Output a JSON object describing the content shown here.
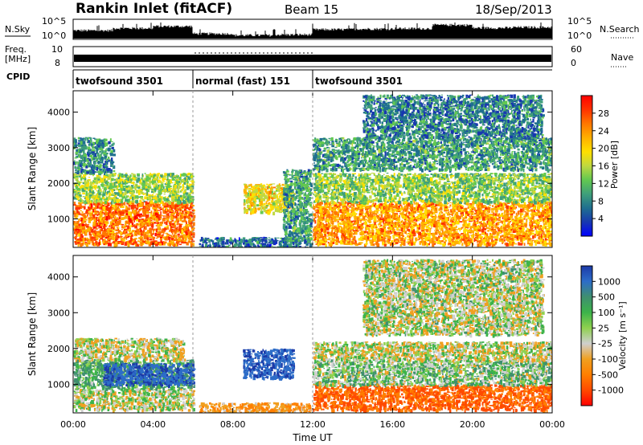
{
  "header": {
    "title": "Rankin Inlet (fitACF)",
    "beam": "Beam 15",
    "date": "18/Sep/2013"
  },
  "top_panels": {
    "nsky_label": "N.Sky",
    "nsky_ticks": [
      "10^5",
      "10^0"
    ],
    "nsearch_label": "N.Search",
    "nsearch_ticks": [
      "10^5",
      "10^0"
    ],
    "freq_label_1": "Freq.",
    "freq_label_2": "[MHz]",
    "freq_ticks": [
      "10",
      "8"
    ],
    "nave_label": "Nave",
    "nave_ticks": [
      "60",
      "0"
    ],
    "cpid_label": "CPID",
    "cpid_segments": [
      {
        "label": "twofsound 3501",
        "start": 0,
        "end": 6
      },
      {
        "label": "normal (fast) 151",
        "start": 6,
        "end": 12
      },
      {
        "label": "twofsound 3501",
        "start": 12,
        "end": 24
      }
    ]
  },
  "x_axis": {
    "label": "Time UT",
    "ticks": [
      "00:00",
      "04:00",
      "08:00",
      "12:00",
      "16:00",
      "20:00",
      "00:00"
    ],
    "range_hours": [
      0,
      24
    ]
  },
  "power_colorbar": {
    "label": "Power [dB]",
    "ticks": [
      "28",
      "24",
      "20",
      "16",
      "12",
      "8",
      "4"
    ],
    "colors": [
      "#ff0000",
      "#ff3300",
      "#ff7700",
      "#ffb000",
      "#ffe000",
      "#c0d840",
      "#62c850",
      "#3f9f7a",
      "#1f6f8f",
      "#1838b0",
      "#0000ff"
    ]
  },
  "velocity_colorbar": {
    "label": "Velocity [m s⁻¹]",
    "ticks": [
      "1000",
      "500",
      "100",
      "25",
      "-25",
      "-100",
      "-500",
      "-1000"
    ],
    "colors": [
      "#1c3aa8",
      "#2d6dc8",
      "#3f8f6f",
      "#3cb34a",
      "#8fd14f",
      "#cfcfcf",
      "#f0a020",
      "#ff7f00",
      "#ff4a00",
      "#ff0000"
    ]
  },
  "chart_data": [
    {
      "type": "heatmap",
      "title": "Power",
      "xlabel": "",
      "ylabel": "Slant Range [km]",
      "y_ticks": [
        "1000",
        "2000",
        "3000",
        "4000"
      ],
      "xlim": [
        0,
        24
      ],
      "ylim": [
        200,
        4600
      ],
      "clim": [
        0,
        30
      ],
      "regions": [
        {
          "t0": 0.0,
          "t1": 6.0,
          "r0": 300,
          "r1": 1500,
          "level": 24
        },
        {
          "t0": 0.0,
          "t1": 6.0,
          "r0": 1500,
          "r1": 2300,
          "level": 14
        },
        {
          "t0": 0.0,
          "t1": 2.0,
          "r0": 2300,
          "r1": 3300,
          "level": 8
        },
        {
          "t0": 6.3,
          "t1": 11.9,
          "r0": 200,
          "r1": 500,
          "level": 6
        },
        {
          "t0": 8.5,
          "t1": 11.0,
          "r0": 1200,
          "r1": 2000,
          "level": 18
        },
        {
          "t0": 10.5,
          "t1": 11.9,
          "r0": 400,
          "r1": 2400,
          "level": 9
        },
        {
          "t0": 12.0,
          "t1": 24.0,
          "r0": 300,
          "r1": 1500,
          "level": 22
        },
        {
          "t0": 12.0,
          "t1": 24.0,
          "r0": 1500,
          "r1": 2300,
          "level": 13
        },
        {
          "t0": 12.0,
          "t1": 24.0,
          "r0": 2400,
          "r1": 3300,
          "level": 9
        },
        {
          "t0": 14.5,
          "t1": 23.5,
          "r0": 3300,
          "r1": 4500,
          "level": 7
        }
      ]
    },
    {
      "type": "heatmap",
      "title": "Velocity",
      "xlabel": "Time UT",
      "ylabel": "Slant Range [km]",
      "y_ticks": [
        "1000",
        "2000",
        "3000",
        "4000"
      ],
      "xlim": [
        0,
        24
      ],
      "ylim": [
        200,
        4600
      ],
      "clim": [
        -1000,
        1000
      ],
      "regions": [
        {
          "t0": 0.0,
          "t1": 6.0,
          "r0": 300,
          "r1": 900,
          "velocity": 0
        },
        {
          "t0": 0.0,
          "t1": 6.0,
          "r0": 900,
          "r1": 1700,
          "velocity": 150
        },
        {
          "t0": 1.5,
          "t1": 6.0,
          "r0": 1000,
          "r1": 1600,
          "velocity": 700
        },
        {
          "t0": 0.0,
          "t1": 5.5,
          "r0": 1700,
          "r1": 2300,
          "velocity": 0
        },
        {
          "t0": 6.3,
          "t1": 11.9,
          "r0": 200,
          "r1": 500,
          "velocity": -150
        },
        {
          "t0": 8.5,
          "t1": 11.0,
          "r0": 1200,
          "r1": 2000,
          "velocity": 700
        },
        {
          "t0": 12.0,
          "t1": 24.0,
          "r0": 300,
          "r1": 1000,
          "velocity": -400
        },
        {
          "t0": 12.0,
          "t1": 24.0,
          "r0": 1000,
          "r1": 1700,
          "velocity": 80
        },
        {
          "t0": 12.0,
          "t1": 24.0,
          "r0": 1700,
          "r1": 2200,
          "velocity": 0
        },
        {
          "t0": 14.5,
          "t1": 23.5,
          "r0": 2400,
          "r1": 4500,
          "velocity": 20
        }
      ]
    },
    {
      "type": "bar",
      "title": "N.Sky / N.Search",
      "x": [
        0,
        2,
        4,
        6,
        8,
        10,
        12,
        14,
        16,
        18,
        20,
        22
      ],
      "series": [
        {
          "name": "N.Sky",
          "values": [
            2.5,
            3.2,
            3.8,
            1.5,
            1.0,
            1.2,
            2.8,
            3.0,
            3.1,
            4.2,
            3.3,
            3.5
          ]
        }
      ],
      "ylim": [
        0,
        5
      ]
    }
  ]
}
